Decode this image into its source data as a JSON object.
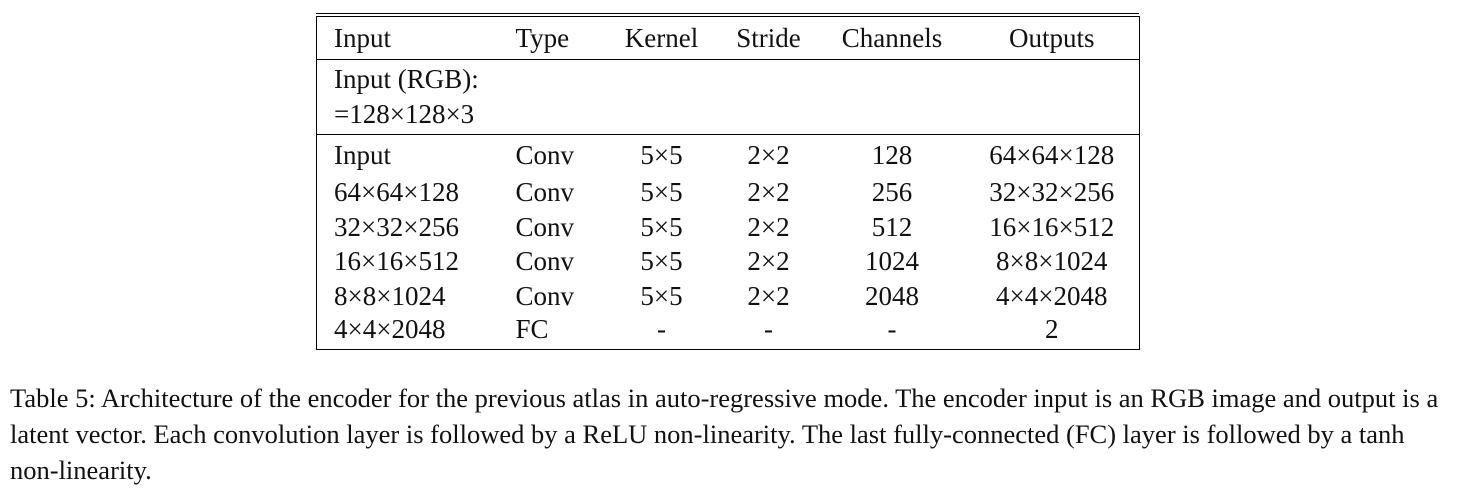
{
  "table": {
    "headers": [
      "Input",
      "Type",
      "Kernel",
      "Stride",
      "Channels",
      "Outputs"
    ],
    "input_spec": {
      "line1": "Input (RGB):",
      "line2": "=128×128×3"
    },
    "rows": [
      [
        "Input",
        "Conv",
        "5×5",
        "2×2",
        "128",
        "64×64×128"
      ],
      [
        "64×64×128",
        "Conv",
        "5×5",
        "2×2",
        "256",
        "32×32×256"
      ],
      [
        "32×32×256",
        "Conv",
        "5×5",
        "2×2",
        "512",
        "16×16×512"
      ],
      [
        "16×16×512",
        "Conv",
        "5×5",
        "2×2",
        "1024",
        "8×8×1024"
      ],
      [
        "8×8×1024",
        "Conv",
        "5×5",
        "2×2",
        "2048",
        "4×4×2048"
      ],
      [
        "4×4×2048",
        "FC",
        "-",
        "-",
        "-",
        "2"
      ]
    ]
  },
  "caption": "Table 5: Architecture of the encoder for the previous atlas in auto-regressive mode. The encoder input is an RGB image and output is a latent vector. Each convolution layer is followed by a ReLU non-linearity. The last fully-connected (FC) layer is followed by a tanh non-linearity."
}
